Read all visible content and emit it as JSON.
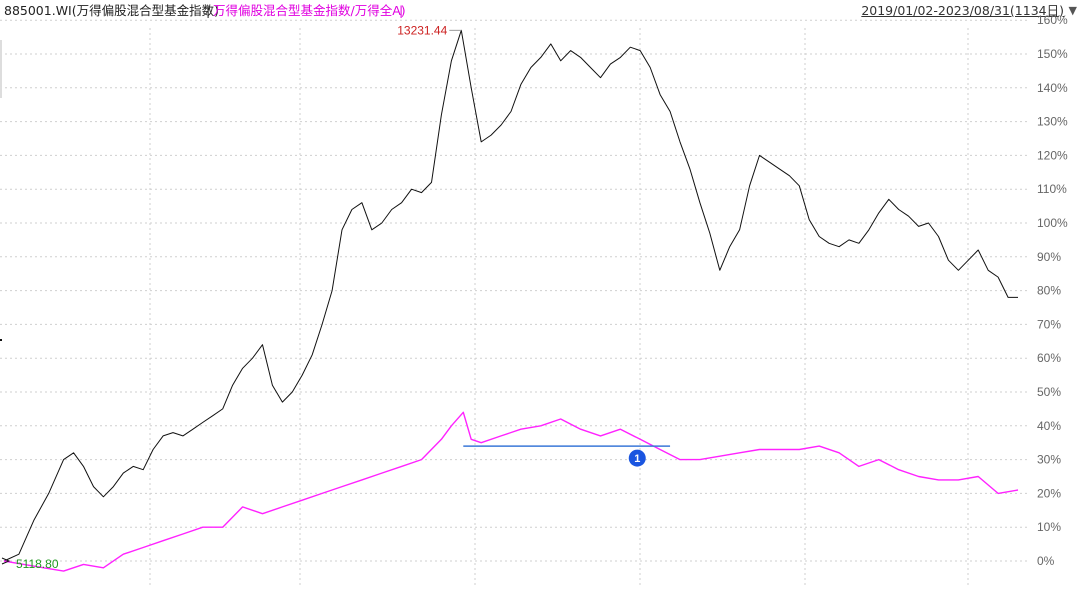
{
  "header": {
    "title_main": "885001.WI(万得偏股混合型基金指数)",
    "separator": "|",
    "title_ratio": "万得偏股混合型基金指数/万得全A)",
    "date_range": "2019/01/02-2023/08/31(1134日)",
    "range_menu_icon": "triangle-down-icon"
  },
  "colors": {
    "main_series": "#111111",
    "ratio_series": "#ff22ff",
    "reference_line": "#3a78d8",
    "max_label": "#cc2222",
    "min_label": "#229922",
    "marker": "#1a55e0"
  },
  "chart_data": {
    "type": "line",
    "title": "885001.WI(万得偏股混合型基金指数)",
    "x_range": [
      "2019/01/02",
      "2023/08/31"
    ],
    "trading_days": 1134,
    "y_axis": {
      "side": "right",
      "unit": "%",
      "ylim": [
        -4,
        161
      ],
      "ticks": [
        0,
        10,
        20,
        30,
        40,
        50,
        60,
        70,
        80,
        90,
        100,
        110,
        120,
        130,
        140,
        150,
        160
      ],
      "tick_labels": [
        "0%",
        "10%",
        "20%",
        "30%",
        "40%",
        "50%",
        "60%",
        "70%",
        "80%",
        "90%",
        "100%",
        "110%",
        "120%",
        "130%",
        "140%",
        "150%",
        "160%"
      ]
    },
    "grid": true,
    "series": [
      {
        "name": "885001.WI(万得偏股混合型基金指数)",
        "points": [
          [
            0,
            0
          ],
          [
            15,
            2
          ],
          [
            30,
            12
          ],
          [
            45,
            20
          ],
          [
            60,
            30
          ],
          [
            70,
            32
          ],
          [
            80,
            28
          ],
          [
            90,
            22
          ],
          [
            100,
            19
          ],
          [
            110,
            22
          ],
          [
            120,
            26
          ],
          [
            130,
            28
          ],
          [
            140,
            27
          ],
          [
            150,
            33
          ],
          [
            160,
            37
          ],
          [
            170,
            38
          ],
          [
            180,
            37
          ],
          [
            190,
            39
          ],
          [
            200,
            41
          ],
          [
            210,
            43
          ],
          [
            220,
            45
          ],
          [
            230,
            52
          ],
          [
            240,
            57
          ],
          [
            250,
            60
          ],
          [
            260,
            64
          ],
          [
            270,
            52
          ],
          [
            280,
            47
          ],
          [
            290,
            50
          ],
          [
            300,
            55
          ],
          [
            310,
            61
          ],
          [
            320,
            70
          ],
          [
            330,
            80
          ],
          [
            340,
            98
          ],
          [
            350,
            104
          ],
          [
            360,
            106
          ],
          [
            370,
            98
          ],
          [
            380,
            100
          ],
          [
            390,
            104
          ],
          [
            400,
            106
          ],
          [
            410,
            110
          ],
          [
            420,
            109
          ],
          [
            430,
            112
          ],
          [
            440,
            132
          ],
          [
            450,
            148
          ],
          [
            460,
            157
          ],
          [
            470,
            140
          ],
          [
            480,
            124
          ],
          [
            490,
            126
          ],
          [
            500,
            129
          ],
          [
            510,
            133
          ],
          [
            520,
            141
          ],
          [
            530,
            146
          ],
          [
            540,
            149
          ],
          [
            550,
            153
          ],
          [
            560,
            148
          ],
          [
            570,
            151
          ],
          [
            580,
            149
          ],
          [
            590,
            146
          ],
          [
            600,
            143
          ],
          [
            610,
            147
          ],
          [
            620,
            149
          ],
          [
            630,
            152
          ],
          [
            640,
            151
          ],
          [
            650,
            146
          ],
          [
            660,
            138
          ],
          [
            670,
            133
          ],
          [
            680,
            124
          ],
          [
            690,
            116
          ],
          [
            700,
            106
          ],
          [
            710,
            97
          ],
          [
            720,
            86
          ],
          [
            730,
            93
          ],
          [
            740,
            98
          ],
          [
            750,
            111
          ],
          [
            760,
            120
          ],
          [
            770,
            118
          ],
          [
            780,
            116
          ],
          [
            790,
            114
          ],
          [
            800,
            111
          ],
          [
            810,
            101
          ],
          [
            820,
            96
          ],
          [
            830,
            94
          ],
          [
            840,
            93
          ],
          [
            850,
            95
          ],
          [
            860,
            94
          ],
          [
            870,
            98
          ],
          [
            880,
            103
          ],
          [
            890,
            107
          ],
          [
            900,
            104
          ],
          [
            910,
            102
          ],
          [
            920,
            99
          ],
          [
            930,
            100
          ],
          [
            940,
            96
          ],
          [
            950,
            89
          ],
          [
            960,
            86
          ],
          [
            970,
            89
          ],
          [
            980,
            92
          ],
          [
            990,
            86
          ],
          [
            1000,
            84
          ],
          [
            1010,
            78
          ],
          [
            1020,
            78
          ]
        ]
      },
      {
        "name": "万得偏股混合型基金指数/万得全A)",
        "points": [
          [
            0,
            0
          ],
          [
            20,
            -1
          ],
          [
            40,
            -2
          ],
          [
            60,
            -3
          ],
          [
            80,
            -1
          ],
          [
            100,
            -2
          ],
          [
            120,
            2
          ],
          [
            140,
            4
          ],
          [
            160,
            6
          ],
          [
            180,
            8
          ],
          [
            200,
            10
          ],
          [
            220,
            10
          ],
          [
            240,
            16
          ],
          [
            260,
            14
          ],
          [
            280,
            16
          ],
          [
            300,
            18
          ],
          [
            320,
            20
          ],
          [
            340,
            22
          ],
          [
            360,
            24
          ],
          [
            380,
            26
          ],
          [
            400,
            28
          ],
          [
            420,
            30
          ],
          [
            440,
            36
          ],
          [
            450,
            40
          ],
          [
            462,
            44
          ],
          [
            470,
            36
          ],
          [
            480,
            35
          ],
          [
            500,
            37
          ],
          [
            520,
            39
          ],
          [
            540,
            40
          ],
          [
            560,
            42
          ],
          [
            580,
            39
          ],
          [
            600,
            37
          ],
          [
            620,
            39
          ],
          [
            640,
            36
          ],
          [
            660,
            33
          ],
          [
            680,
            30
          ],
          [
            700,
            30
          ],
          [
            720,
            31
          ],
          [
            740,
            32
          ],
          [
            760,
            33
          ],
          [
            780,
            33
          ],
          [
            800,
            33
          ],
          [
            820,
            34
          ],
          [
            840,
            32
          ],
          [
            860,
            28
          ],
          [
            880,
            30
          ],
          [
            900,
            27
          ],
          [
            920,
            25
          ],
          [
            940,
            24
          ],
          [
            960,
            24
          ],
          [
            980,
            25
          ],
          [
            1000,
            20
          ],
          [
            1020,
            21
          ]
        ]
      }
    ],
    "annotations": {
      "max_label": "13231.44",
      "min_label": "5118.80",
      "marker_label": "1",
      "reference_line_level": 34
    }
  }
}
